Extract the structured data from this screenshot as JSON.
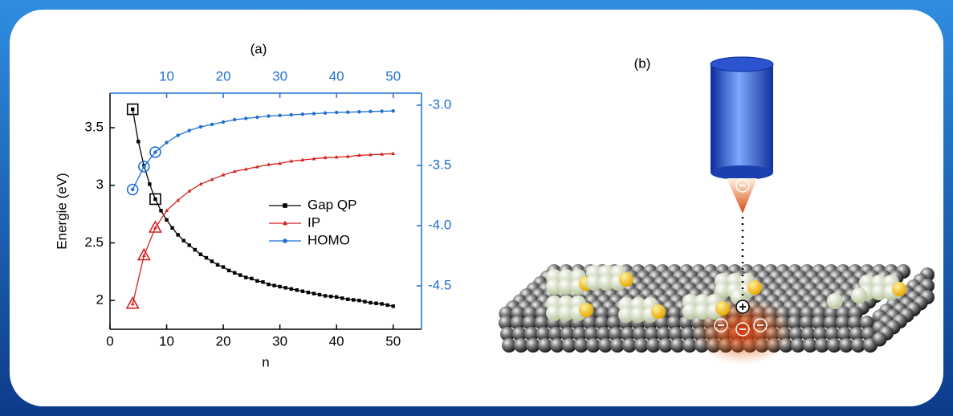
{
  "chart_data": {
    "type": "line",
    "title": "(a)",
    "x_label": "n",
    "y_label": "Energie (eV)",
    "xlim": [
      0,
      55
    ],
    "xticks": [
      0,
      10,
      20,
      30,
      40,
      50
    ],
    "x2ticks": [
      10,
      20,
      30,
      40,
      50
    ],
    "x2_color": "#1f6fd1",
    "ylim": [
      1.75,
      3.8
    ],
    "yticks": [
      2.0,
      2.5,
      3.0,
      3.5
    ],
    "y2lim": [
      -4.86,
      -2.9
    ],
    "y2ticks": [
      {
        "value": -3.0,
        "label": "-3.0"
      },
      -3.5,
      {
        "value": -4.0,
        "label": "-4.0"
      },
      -4.5
    ],
    "y2_color": "#1f6fd1",
    "legend": "center right",
    "series": [
      {
        "name": "Gap QP",
        "color": "#000000",
        "marker": "square",
        "axis": "y",
        "highlight_x": [
          4,
          8
        ],
        "x": [
          4,
          5,
          6,
          7,
          8,
          9,
          10,
          11,
          12,
          13,
          14,
          15,
          16,
          17,
          18,
          19,
          20,
          21,
          22,
          23,
          24,
          25,
          26,
          27,
          28,
          29,
          30,
          31,
          32,
          33,
          34,
          35,
          36,
          37,
          38,
          39,
          40,
          41,
          42,
          43,
          44,
          45,
          46,
          47,
          48,
          49,
          50
        ],
        "values": [
          3.66,
          3.38,
          3.17,
          3.01,
          2.88,
          2.78,
          2.7,
          2.63,
          2.57,
          2.52,
          2.48,
          2.44,
          2.4,
          2.37,
          2.34,
          2.31,
          2.29,
          2.26,
          2.24,
          2.22,
          2.2,
          2.19,
          2.17,
          2.16,
          2.14,
          2.13,
          2.12,
          2.11,
          2.1,
          2.09,
          2.08,
          2.07,
          2.06,
          2.05,
          2.04,
          2.035,
          2.03,
          2.02,
          2.01,
          2.005,
          2.0,
          1.99,
          1.98,
          1.975,
          1.97,
          1.96,
          1.95
        ]
      },
      {
        "name": "IP",
        "color": "#d62020",
        "marker": "triangle",
        "axis": "y",
        "highlight_x": [
          4,
          6,
          8
        ],
        "x": [
          4,
          6,
          8,
          10,
          12,
          14,
          16,
          18,
          20,
          22,
          24,
          26,
          28,
          30,
          32,
          34,
          36,
          38,
          40,
          42,
          44,
          46,
          48,
          50
        ],
        "values": [
          1.97,
          2.39,
          2.63,
          2.78,
          2.87,
          2.95,
          3.01,
          3.05,
          3.09,
          3.12,
          3.14,
          3.16,
          3.18,
          3.19,
          3.21,
          3.22,
          3.23,
          3.24,
          3.245,
          3.25,
          3.26,
          3.265,
          3.27,
          3.275
        ]
      },
      {
        "name": "HOMO",
        "color": "#1f6fd1",
        "marker": "circle",
        "axis": "y2",
        "highlight_x": [
          4,
          6,
          8
        ],
        "x": [
          4,
          6,
          8,
          10,
          12,
          14,
          16,
          18,
          20,
          22,
          24,
          26,
          28,
          30,
          32,
          34,
          36,
          38,
          40,
          42,
          44,
          46,
          48,
          50
        ],
        "values": [
          -3.7,
          -3.51,
          -3.39,
          -3.31,
          -3.25,
          -3.21,
          -3.18,
          -3.16,
          -3.14,
          -3.12,
          -3.11,
          -3.1,
          -3.09,
          -3.085,
          -3.08,
          -3.075,
          -3.07,
          -3.065,
          -3.06,
          -3.058,
          -3.055,
          -3.052,
          -3.05,
          -3.048
        ]
      }
    ]
  },
  "panel_b": {
    "label": "(b)"
  }
}
